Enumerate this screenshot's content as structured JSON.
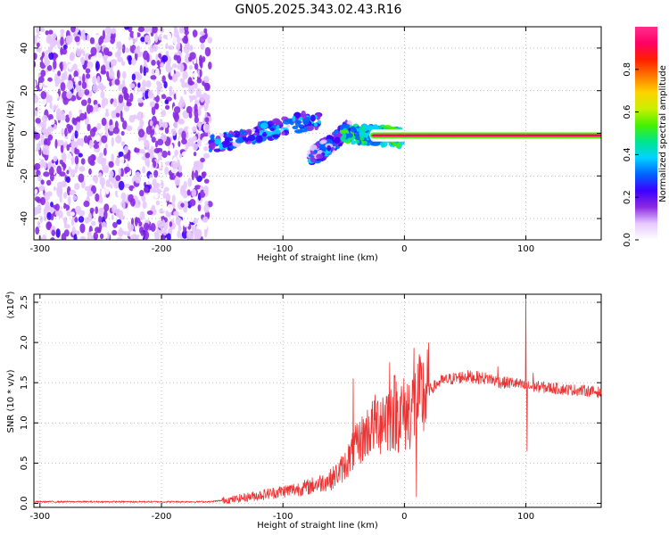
{
  "title": "GN05.2025.343.02.43.R16",
  "chart_data": [
    {
      "type": "heatmap",
      "xlabel": "Height of straight line (km)",
      "ylabel": "Frequency (Hz)",
      "xlim": [
        -305,
        162
      ],
      "ylim": [
        -50,
        50
      ],
      "xticks": [
        -300,
        -200,
        -100,
        0,
        100
      ],
      "yticks": [
        -40,
        -20,
        0,
        20,
        40
      ],
      "colorbar": {
        "label": "Normalized spectral amplitude",
        "range": [
          0.0,
          1.0
        ],
        "ticks": [
          0.0,
          0.2,
          0.4,
          0.6,
          0.8
        ],
        "tick_labels": [
          "0.0",
          "0.2",
          "0.4",
          "0.6",
          "0.8"
        ],
        "colormap": [
          "#ffffff",
          "#e6c8ff",
          "#8a2be2",
          "#3c00ff",
          "#0064ff",
          "#00d2ff",
          "#00e68c",
          "#46f000",
          "#c8f000",
          "#ffd200",
          "#ff7800",
          "#ff1e00",
          "#ff0064",
          "#ff2d8c"
        ]
      },
      "features": [
        {
          "name": "noise",
          "x_range": [
            -305,
            -160
          ],
          "freq_range": [
            -50,
            50
          ],
          "amplitude": 0.15
        },
        {
          "name": "band-1",
          "x_range": [
            -160,
            -70
          ],
          "freq_center": [
            -5,
            7
          ],
          "amplitude": 0.3
        },
        {
          "name": "band-2",
          "x_range": [
            -78,
            -45
          ],
          "freq_center": [
            -12,
            2
          ],
          "amplitude": 0.25
        },
        {
          "name": "band-3",
          "x_range": [
            -50,
            0
          ],
          "freq_center": [
            0,
            -2
          ],
          "amplitude": 0.45
        },
        {
          "name": "carrier",
          "x_range": [
            -25,
            162
          ],
          "freq_center": [
            -1,
            -1
          ],
          "amplitude": 0.95
        }
      ]
    },
    {
      "type": "line",
      "xlabel": "Height of straight line (km)",
      "ylabel": "SNR (10 * v/v)",
      "yscale_label": "(x10",
      "yscale_exp": "4",
      "yscale_close": ")",
      "xlim": [
        -305,
        162
      ],
      "ylim": [
        -0.05,
        2.6
      ],
      "xticks": [
        -300,
        -200,
        -100,
        0,
        100
      ],
      "yticks": [
        0.0,
        0.5,
        1.0,
        1.5,
        2.0,
        2.5
      ],
      "ytick_labels": [
        "0.0",
        "0.5",
        "1.0",
        "1.5",
        "2.0",
        "2.5"
      ],
      "color": "#ee3333",
      "x": [
        -305,
        -250,
        -200,
        -160,
        -140,
        -120,
        -100,
        -80,
        -60,
        -50,
        -40,
        -30,
        -20,
        -10,
        0,
        10,
        20,
        30,
        50,
        70,
        80,
        90,
        100,
        110,
        130,
        150,
        162
      ],
      "y": [
        0.02,
        0.02,
        0.02,
        0.02,
        0.05,
        0.1,
        0.15,
        0.2,
        0.3,
        0.45,
        0.7,
        0.9,
        1.05,
        1.15,
        1.1,
        1.25,
        1.4,
        1.52,
        1.58,
        1.55,
        1.5,
        1.5,
        1.45,
        1.45,
        1.42,
        1.4,
        1.38
      ],
      "spikes": [
        {
          "x": -42,
          "y": 1.55
        },
        {
          "x": -12,
          "y": 1.75
        },
        {
          "x": 8,
          "y": 1.93
        },
        {
          "x": 10,
          "y": 0.08
        },
        {
          "x": 77,
          "y": 1.7
        },
        {
          "x": 100,
          "y": 2.6
        },
        {
          "x": 101,
          "y": 0.65
        },
        {
          "x": 106,
          "y": 1.62
        }
      ]
    }
  ]
}
